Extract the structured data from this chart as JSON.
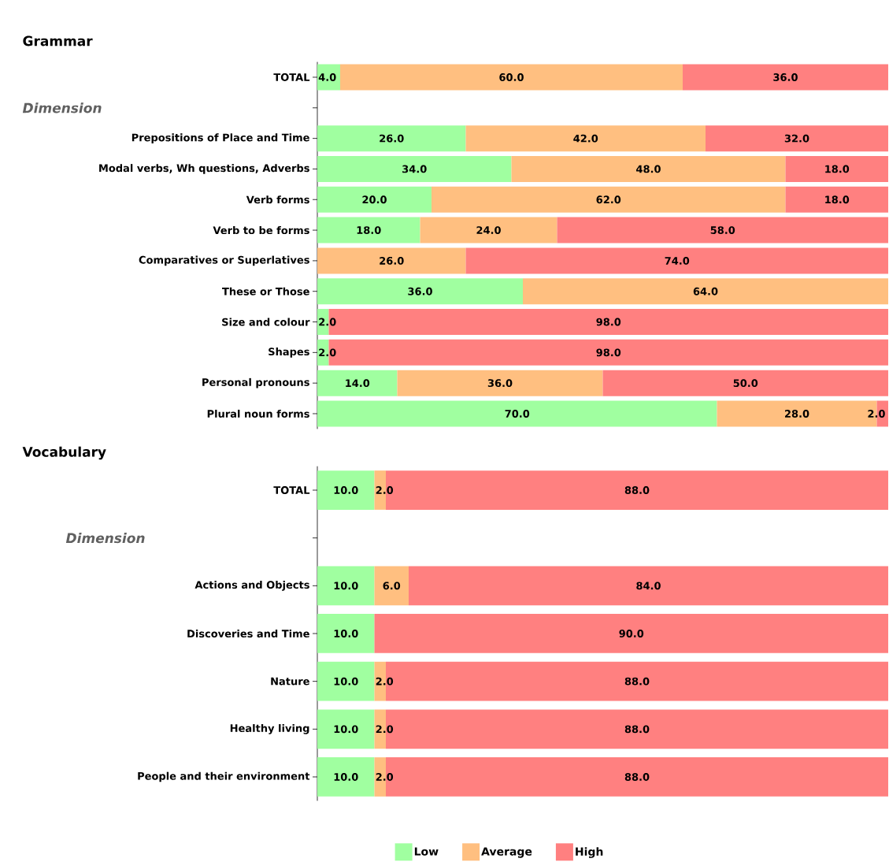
{
  "chart_data": [
    {
      "type": "bar",
      "orientation": "horizontal",
      "stacked": true,
      "title": "Grammar",
      "tick_labels": "y",
      "annotations": [
        "Dimension"
      ],
      "categories": [
        "TOTAL",
        null,
        "Prepositions of Place and Time",
        "Modal verbs, Wh questions, Adverbs",
        "Verb forms",
        "Verb to be forms",
        "Comparatives or Superlatives",
        "These or Those",
        "Size and colour",
        "Shapes",
        "Personal pronouns",
        "Plural noun forms"
      ],
      "series": [
        {
          "color": "#a0ffa0",
          "values": [
            4,
            null,
            26,
            34,
            20,
            18,
            null,
            36,
            2,
            2,
            14,
            70
          ],
          "value_labels": [
            "4.0",
            null,
            "26.0",
            "34.0",
            "20.0",
            "18.0",
            null,
            "36.0",
            "2.0",
            "2.0",
            "14.0",
            "70.0"
          ]
        },
        {
          "color": "#ffbf80",
          "values": [
            60,
            null,
            42,
            48,
            62,
            24,
            26,
            64,
            null,
            null,
            36,
            28
          ],
          "value_labels": [
            "60.0",
            null,
            "42.0",
            "48.0",
            "62.0",
            "24.0",
            "26.0",
            "64.0",
            null,
            null,
            "36.0",
            "28.0"
          ]
        },
        {
          "color": "#ff8080",
          "values": [
            36,
            null,
            32,
            18,
            18,
            58,
            74,
            null,
            98,
            98,
            50,
            2
          ],
          "value_labels": [
            "36.0",
            null,
            "32.0",
            "18.0",
            "18.0",
            "58.0",
            "74.0",
            null,
            "98.0",
            "98.0",
            "50.0",
            "2.0"
          ]
        }
      ]
    },
    {
      "type": "bar",
      "orientation": "horizontal",
      "stacked": true,
      "title": "Vocabulary",
      "tick_labels": "y",
      "legend": "bottom",
      "annotations": [
        "Dimension"
      ],
      "categories": [
        "TOTAL",
        null,
        "Actions and Objects",
        "Discoveries and Time",
        "Nature",
        "Healthy living",
        "People and their environment"
      ],
      "series": [
        {
          "name": "Low",
          "color": "#a0ffa0",
          "values": [
            10,
            null,
            10,
            10,
            10,
            10,
            10
          ],
          "value_labels": [
            "10.0",
            null,
            "10.0",
            "10.0",
            "10.0",
            "10.0",
            "10.0"
          ]
        },
        {
          "name": "Average",
          "color": "#ffbf80",
          "values": [
            2,
            null,
            6,
            null,
            2,
            2,
            2
          ],
          "value_labels": [
            "2.0",
            null,
            "6.0",
            null,
            "2.0",
            "2.0",
            "2.0"
          ]
        },
        {
          "name": "High",
          "color": "#ff8080",
          "values": [
            88,
            null,
            84,
            90,
            88,
            88,
            88
          ],
          "value_labels": [
            "88.0",
            null,
            "84.0",
            "90.0",
            "88.0",
            "88.0",
            "88.0"
          ]
        }
      ]
    }
  ]
}
